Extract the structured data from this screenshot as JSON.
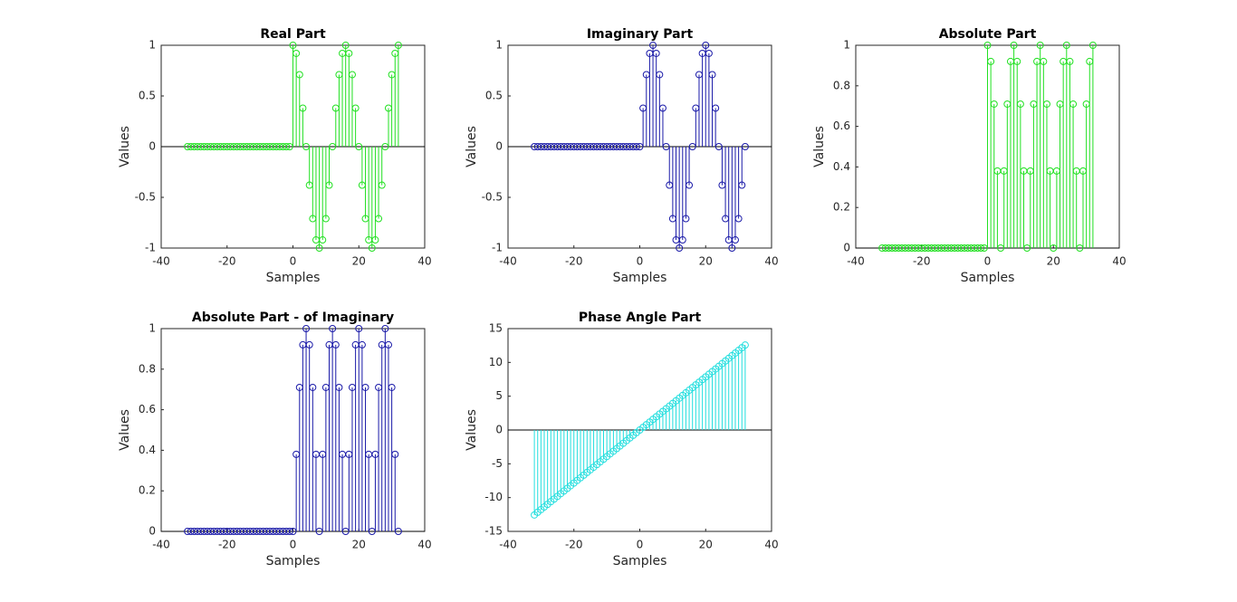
{
  "chart_data": [
    {
      "type": "stem",
      "title": "Real Part",
      "xlabel": "Samples",
      "ylabel": "Values",
      "color": "#22e022",
      "x": [
        -32,
        -31,
        -30,
        -29,
        -28,
        -27,
        -26,
        -25,
        -24,
        -23,
        -22,
        -21,
        -20,
        -19,
        -18,
        -17,
        -16,
        -15,
        -14,
        -13,
        -12,
        -11,
        -10,
        -9,
        -8,
        -7,
        -6,
        -5,
        -4,
        -3,
        -2,
        -1,
        0,
        1,
        2,
        3,
        4,
        5,
        6,
        7,
        8,
        9,
        10,
        11,
        12,
        13,
        14,
        15,
        16,
        17,
        18,
        19,
        20,
        21,
        22,
        23,
        24,
        25,
        26,
        27,
        28,
        29,
        30,
        31,
        32
      ],
      "values": [
        0,
        0,
        0,
        0,
        0,
        0,
        0,
        0,
        0,
        0,
        0,
        0,
        0,
        0,
        0,
        0,
        0,
        0,
        0,
        0,
        0,
        0,
        0,
        0,
        0,
        0,
        0,
        0,
        0,
        0,
        0,
        0,
        1,
        0.92,
        0.71,
        0.38,
        0,
        -0.38,
        -0.71,
        -0.92,
        -1,
        -0.92,
        -0.71,
        -0.38,
        0,
        0.38,
        0.71,
        0.92,
        1,
        0.92,
        0.71,
        0.38,
        0,
        -0.38,
        -0.71,
        -0.92,
        -1,
        -0.92,
        -0.71,
        -0.38,
        0,
        0.38,
        0.71,
        0.92,
        1
      ],
      "xlim": [
        -40,
        40
      ],
      "xticks": [
        -40,
        -20,
        0,
        20,
        40
      ],
      "ylim": [
        -1,
        1
      ],
      "yticks": [
        -1,
        -0.5,
        0,
        0.5,
        1
      ]
    },
    {
      "type": "stem",
      "title": "Imaginary Part",
      "xlabel": "Samples",
      "ylabel": "Values",
      "color": "#1a1aa8",
      "x": [
        -32,
        -31,
        -30,
        -29,
        -28,
        -27,
        -26,
        -25,
        -24,
        -23,
        -22,
        -21,
        -20,
        -19,
        -18,
        -17,
        -16,
        -15,
        -14,
        -13,
        -12,
        -11,
        -10,
        -9,
        -8,
        -7,
        -6,
        -5,
        -4,
        -3,
        -2,
        -1,
        0,
        1,
        2,
        3,
        4,
        5,
        6,
        7,
        8,
        9,
        10,
        11,
        12,
        13,
        14,
        15,
        16,
        17,
        18,
        19,
        20,
        21,
        22,
        23,
        24,
        25,
        26,
        27,
        28,
        29,
        30,
        31,
        32
      ],
      "values": [
        0,
        0,
        0,
        0,
        0,
        0,
        0,
        0,
        0,
        0,
        0,
        0,
        0,
        0,
        0,
        0,
        0,
        0,
        0,
        0,
        0,
        0,
        0,
        0,
        0,
        0,
        0,
        0,
        0,
        0,
        0,
        0,
        0,
        0.38,
        0.71,
        0.92,
        1,
        0.92,
        0.71,
        0.38,
        0,
        -0.38,
        -0.71,
        -0.92,
        -1,
        -0.92,
        -0.71,
        -0.38,
        0,
        0.38,
        0.71,
        0.92,
        1,
        0.92,
        0.71,
        0.38,
        0,
        -0.38,
        -0.71,
        -0.92,
        -1,
        -0.92,
        -0.71,
        -0.38,
        0
      ],
      "xlim": [
        -40,
        40
      ],
      "xticks": [
        -40,
        -20,
        0,
        20,
        40
      ],
      "ylim": [
        -1,
        1
      ],
      "yticks": [
        -1,
        -0.5,
        0,
        0.5,
        1
      ]
    },
    {
      "type": "stem",
      "title": "Absolute Part",
      "xlabel": "Samples",
      "ylabel": "Values",
      "color": "#22e022",
      "x": [
        -32,
        -31,
        -30,
        -29,
        -28,
        -27,
        -26,
        -25,
        -24,
        -23,
        -22,
        -21,
        -20,
        -19,
        -18,
        -17,
        -16,
        -15,
        -14,
        -13,
        -12,
        -11,
        -10,
        -9,
        -8,
        -7,
        -6,
        -5,
        -4,
        -3,
        -2,
        -1,
        0,
        1,
        2,
        3,
        4,
        5,
        6,
        7,
        8,
        9,
        10,
        11,
        12,
        13,
        14,
        15,
        16,
        17,
        18,
        19,
        20,
        21,
        22,
        23,
        24,
        25,
        26,
        27,
        28,
        29,
        30,
        31,
        32
      ],
      "values": [
        0,
        0,
        0,
        0,
        0,
        0,
        0,
        0,
        0,
        0,
        0,
        0,
        0,
        0,
        0,
        0,
        0,
        0,
        0,
        0,
        0,
        0,
        0,
        0,
        0,
        0,
        0,
        0,
        0,
        0,
        0,
        0,
        1,
        0.92,
        0.71,
        0.38,
        0,
        0.38,
        0.71,
        0.92,
        1,
        0.92,
        0.71,
        0.38,
        0,
        0.38,
        0.71,
        0.92,
        1,
        0.92,
        0.71,
        0.38,
        0,
        0.38,
        0.71,
        0.92,
        1,
        0.92,
        0.71,
        0.38,
        0,
        0.38,
        0.71,
        0.92,
        1
      ],
      "xlim": [
        -40,
        40
      ],
      "xticks": [
        -40,
        -20,
        0,
        20,
        40
      ],
      "ylim": [
        0,
        1
      ],
      "yticks": [
        0,
        0.2,
        0.4,
        0.6,
        0.8,
        1
      ]
    },
    {
      "type": "stem",
      "title": "Absolute Part - of Imaginary",
      "xlabel": "Samples",
      "ylabel": "Values",
      "color": "#1a1aa8",
      "x": [
        -32,
        -31,
        -30,
        -29,
        -28,
        -27,
        -26,
        -25,
        -24,
        -23,
        -22,
        -21,
        -20,
        -19,
        -18,
        -17,
        -16,
        -15,
        -14,
        -13,
        -12,
        -11,
        -10,
        -9,
        -8,
        -7,
        -6,
        -5,
        -4,
        -3,
        -2,
        -1,
        0,
        1,
        2,
        3,
        4,
        5,
        6,
        7,
        8,
        9,
        10,
        11,
        12,
        13,
        14,
        15,
        16,
        17,
        18,
        19,
        20,
        21,
        22,
        23,
        24,
        25,
        26,
        27,
        28,
        29,
        30,
        31,
        32
      ],
      "values": [
        0,
        0,
        0,
        0,
        0,
        0,
        0,
        0,
        0,
        0,
        0,
        0,
        0,
        0,
        0,
        0,
        0,
        0,
        0,
        0,
        0,
        0,
        0,
        0,
        0,
        0,
        0,
        0,
        0,
        0,
        0,
        0,
        0,
        0.38,
        0.71,
        0.92,
        1,
        0.92,
        0.71,
        0.38,
        0,
        0.38,
        0.71,
        0.92,
        1,
        0.92,
        0.71,
        0.38,
        0,
        0.38,
        0.71,
        0.92,
        1,
        0.92,
        0.71,
        0.38,
        0,
        0.38,
        0.71,
        0.92,
        1,
        0.92,
        0.71,
        0.38,
        0
      ],
      "xlim": [
        -40,
        40
      ],
      "xticks": [
        -40,
        -20,
        0,
        20,
        40
      ],
      "ylim": [
        0,
        1
      ],
      "yticks": [
        0,
        0.2,
        0.4,
        0.6,
        0.8,
        1
      ]
    },
    {
      "type": "stem",
      "title": "Phase Angle Part",
      "xlabel": "Samples",
      "ylabel": "Values",
      "color": "#22dede",
      "x": [
        -32,
        -31,
        -30,
        -29,
        -28,
        -27,
        -26,
        -25,
        -24,
        -23,
        -22,
        -21,
        -20,
        -19,
        -18,
        -17,
        -16,
        -15,
        -14,
        -13,
        -12,
        -11,
        -10,
        -9,
        -8,
        -7,
        -6,
        -5,
        -4,
        -3,
        -2,
        -1,
        0,
        1,
        2,
        3,
        4,
        5,
        6,
        7,
        8,
        9,
        10,
        11,
        12,
        13,
        14,
        15,
        16,
        17,
        18,
        19,
        20,
        21,
        22,
        23,
        24,
        25,
        26,
        27,
        28,
        29,
        30,
        31,
        32
      ],
      "values": [
        -12.57,
        -12.17,
        -11.78,
        -11.39,
        -11,
        -10.6,
        -10.21,
        -9.82,
        -9.42,
        -9.03,
        -8.64,
        -8.25,
        -7.85,
        -7.46,
        -7.07,
        -6.68,
        -6.28,
        -5.89,
        -5.5,
        -5.11,
        -4.71,
        -4.32,
        -3.93,
        -3.53,
        -3.14,
        -2.75,
        -2.36,
        -1.96,
        -1.57,
        -1.18,
        -0.79,
        -0.39,
        0,
        0.39,
        0.79,
        1.18,
        1.57,
        1.96,
        2.36,
        2.75,
        3.14,
        3.53,
        3.93,
        4.32,
        4.71,
        5.11,
        5.5,
        5.89,
        6.28,
        6.68,
        7.07,
        7.46,
        7.85,
        8.25,
        8.64,
        9.03,
        9.42,
        9.82,
        10.21,
        10.6,
        11,
        11.39,
        11.78,
        12.17,
        12.57
      ],
      "xlim": [
        -40,
        40
      ],
      "xticks": [
        -40,
        -20,
        0,
        20,
        40
      ],
      "ylim": [
        -15,
        15
      ],
      "yticks": [
        -15,
        -10,
        -5,
        0,
        5,
        10,
        15
      ]
    }
  ]
}
